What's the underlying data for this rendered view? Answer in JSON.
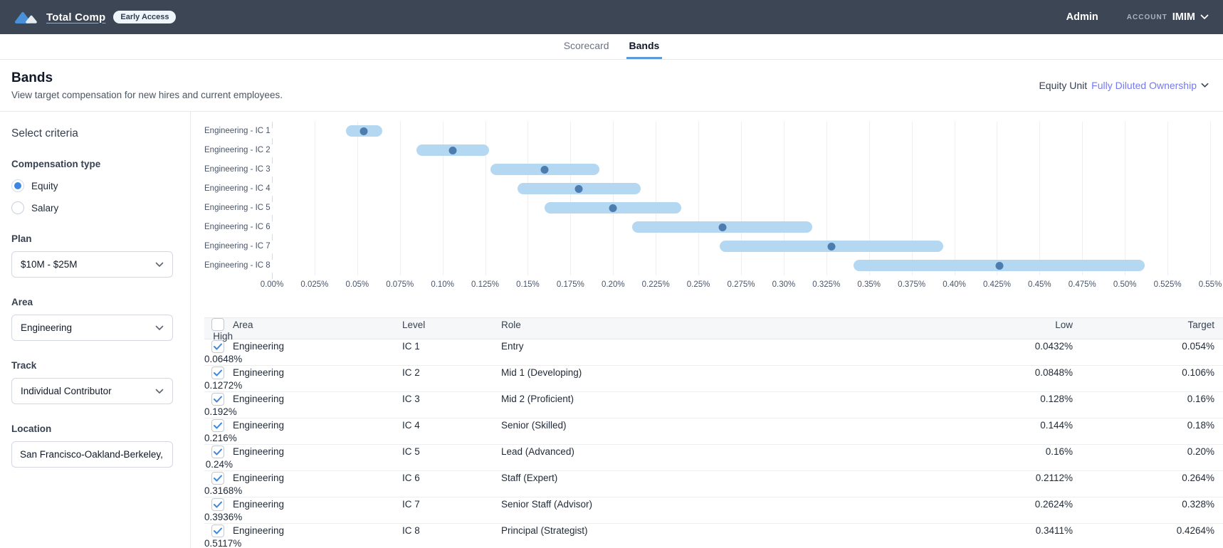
{
  "topbar": {
    "app_name": "Total Comp",
    "badge": "Early Access",
    "admin_label": "Admin",
    "account_label": "ACCOUNT",
    "account_name": "IMIM"
  },
  "tabs": [
    {
      "label": "Scorecard",
      "active": false
    },
    {
      "label": "Bands",
      "active": true
    }
  ],
  "page_header": {
    "title": "Bands",
    "subtitle": "View target compensation for new hires and current employees.",
    "equity_unit_label": "Equity Unit",
    "equity_unit_value": "Fully Diluted Ownership"
  },
  "sidebar": {
    "title": "Select criteria",
    "compensation_type": {
      "label": "Compensation type",
      "options": [
        {
          "label": "Equity",
          "selected": true
        },
        {
          "label": "Salary",
          "selected": false
        }
      ]
    },
    "plan": {
      "label": "Plan",
      "value": "$10M - $25M"
    },
    "area": {
      "label": "Area",
      "value": "Engineering"
    },
    "track": {
      "label": "Track",
      "value": "Individual Contributor"
    },
    "location": {
      "label": "Location",
      "value": "San Francisco-Oakland-Berkeley, CA"
    }
  },
  "chart_data": {
    "type": "bar",
    "orientation": "horizontal",
    "categories": [
      "Engineering - IC 1",
      "Engineering - IC 2",
      "Engineering - IC 3",
      "Engineering - IC 4",
      "Engineering - IC 5",
      "Engineering - IC 6",
      "Engineering - IC 7",
      "Engineering - IC 8"
    ],
    "series": [
      {
        "name": "Low",
        "values": [
          0.0432,
          0.0848,
          0.128,
          0.144,
          0.16,
          0.2112,
          0.2624,
          0.3411
        ]
      },
      {
        "name": "Target",
        "values": [
          0.054,
          0.106,
          0.16,
          0.18,
          0.2,
          0.264,
          0.328,
          0.4264
        ]
      },
      {
        "name": "High",
        "values": [
          0.0648,
          0.1272,
          0.192,
          0.216,
          0.24,
          0.3168,
          0.3936,
          0.5117
        ]
      }
    ],
    "unit": "%",
    "xlim": [
      0,
      0.55
    ],
    "xtick_step": 0.025,
    "xtick_labels": [
      "0.00%",
      "0.025%",
      "0.05%",
      "0.075%",
      "0.10%",
      "0.125%",
      "0.15%",
      "0.175%",
      "0.20%",
      "0.225%",
      "0.25%",
      "0.275%",
      "0.30%",
      "0.325%",
      "0.35%",
      "0.375%",
      "0.40%",
      "0.425%",
      "0.45%",
      "0.475%",
      "0.50%",
      "0.525%",
      "0.55%"
    ],
    "grid": true,
    "band_color": "#b5d8f2",
    "target_color": "#4c7dae"
  },
  "table": {
    "columns": [
      "Area",
      "Level",
      "Role",
      "Low",
      "Target",
      "High"
    ],
    "rows": [
      {
        "checked": true,
        "area": "Engineering",
        "level": "IC 1",
        "role": "Entry",
        "low": "0.0432%",
        "target": "0.054%",
        "high": "0.0648%"
      },
      {
        "checked": true,
        "area": "Engineering",
        "level": "IC 2",
        "role": "Mid 1 (Developing)",
        "low": "0.0848%",
        "target": "0.106%",
        "high": "0.1272%"
      },
      {
        "checked": true,
        "area": "Engineering",
        "level": "IC 3",
        "role": "Mid 2 (Proficient)",
        "low": "0.128%",
        "target": "0.16%",
        "high": "0.192%"
      },
      {
        "checked": true,
        "area": "Engineering",
        "level": "IC 4",
        "role": "Senior (Skilled)",
        "low": "0.144%",
        "target": "0.18%",
        "high": "0.216%"
      },
      {
        "checked": true,
        "area": "Engineering",
        "level": "IC 5",
        "role": "Lead (Advanced)",
        "low": "0.16%",
        "target": "0.20%",
        "high": "0.24%"
      },
      {
        "checked": true,
        "area": "Engineering",
        "level": "IC 6",
        "role": "Staff (Expert)",
        "low": "0.2112%",
        "target": "0.264%",
        "high": "0.3168%"
      },
      {
        "checked": true,
        "area": "Engineering",
        "level": "IC 7",
        "role": "Senior Staff (Advisor)",
        "low": "0.2624%",
        "target": "0.328%",
        "high": "0.3936%"
      },
      {
        "checked": true,
        "area": "Engineering",
        "level": "IC 8",
        "role": "Principal (Strategist)",
        "low": "0.3411%",
        "target": "0.4264%",
        "high": "0.5117%"
      }
    ]
  },
  "colors": {
    "topbar_bg": "#3c4654",
    "accent_blue": "#3d87e0",
    "tab_underline": "#5d9bd8",
    "link_purple": "#7579f0",
    "band_fill": "#b5d8f2",
    "band_dot": "#4c7dae"
  }
}
